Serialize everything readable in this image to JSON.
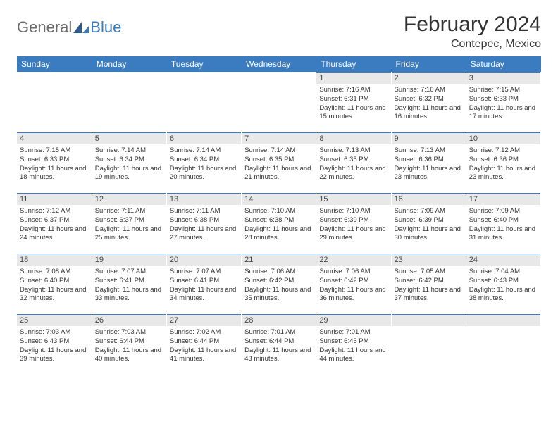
{
  "logo": {
    "part1": "General",
    "part2": "Blue"
  },
  "title": "February 2024",
  "location": "Contepec, Mexico",
  "colors": {
    "header_bg": "#3b7bbf",
    "header_text": "#ffffff",
    "daynum_bg": "#e8e8e8",
    "border": "#3b7bbf",
    "logo_gray": "#6b6b6b",
    "logo_blue": "#3b7bbf",
    "body_text": "#333333",
    "page_bg": "#ffffff"
  },
  "weekdays": [
    "Sunday",
    "Monday",
    "Tuesday",
    "Wednesday",
    "Thursday",
    "Friday",
    "Saturday"
  ],
  "month": {
    "year": 2024,
    "month": 2,
    "first_weekday_index": 4,
    "days_in_month": 29
  },
  "days": {
    "1": {
      "sunrise": "7:16 AM",
      "sunset": "6:31 PM",
      "daylight": "11 hours and 15 minutes."
    },
    "2": {
      "sunrise": "7:16 AM",
      "sunset": "6:32 PM",
      "daylight": "11 hours and 16 minutes."
    },
    "3": {
      "sunrise": "7:15 AM",
      "sunset": "6:33 PM",
      "daylight": "11 hours and 17 minutes."
    },
    "4": {
      "sunrise": "7:15 AM",
      "sunset": "6:33 PM",
      "daylight": "11 hours and 18 minutes."
    },
    "5": {
      "sunrise": "7:14 AM",
      "sunset": "6:34 PM",
      "daylight": "11 hours and 19 minutes."
    },
    "6": {
      "sunrise": "7:14 AM",
      "sunset": "6:34 PM",
      "daylight": "11 hours and 20 minutes."
    },
    "7": {
      "sunrise": "7:14 AM",
      "sunset": "6:35 PM",
      "daylight": "11 hours and 21 minutes."
    },
    "8": {
      "sunrise": "7:13 AM",
      "sunset": "6:35 PM",
      "daylight": "11 hours and 22 minutes."
    },
    "9": {
      "sunrise": "7:13 AM",
      "sunset": "6:36 PM",
      "daylight": "11 hours and 23 minutes."
    },
    "10": {
      "sunrise": "7:12 AM",
      "sunset": "6:36 PM",
      "daylight": "11 hours and 23 minutes."
    },
    "11": {
      "sunrise": "7:12 AM",
      "sunset": "6:37 PM",
      "daylight": "11 hours and 24 minutes."
    },
    "12": {
      "sunrise": "7:11 AM",
      "sunset": "6:37 PM",
      "daylight": "11 hours and 25 minutes."
    },
    "13": {
      "sunrise": "7:11 AM",
      "sunset": "6:38 PM",
      "daylight": "11 hours and 27 minutes."
    },
    "14": {
      "sunrise": "7:10 AM",
      "sunset": "6:38 PM",
      "daylight": "11 hours and 28 minutes."
    },
    "15": {
      "sunrise": "7:10 AM",
      "sunset": "6:39 PM",
      "daylight": "11 hours and 29 minutes."
    },
    "16": {
      "sunrise": "7:09 AM",
      "sunset": "6:39 PM",
      "daylight": "11 hours and 30 minutes."
    },
    "17": {
      "sunrise": "7:09 AM",
      "sunset": "6:40 PM",
      "daylight": "11 hours and 31 minutes."
    },
    "18": {
      "sunrise": "7:08 AM",
      "sunset": "6:40 PM",
      "daylight": "11 hours and 32 minutes."
    },
    "19": {
      "sunrise": "7:07 AM",
      "sunset": "6:41 PM",
      "daylight": "11 hours and 33 minutes."
    },
    "20": {
      "sunrise": "7:07 AM",
      "sunset": "6:41 PM",
      "daylight": "11 hours and 34 minutes."
    },
    "21": {
      "sunrise": "7:06 AM",
      "sunset": "6:42 PM",
      "daylight": "11 hours and 35 minutes."
    },
    "22": {
      "sunrise": "7:06 AM",
      "sunset": "6:42 PM",
      "daylight": "11 hours and 36 minutes."
    },
    "23": {
      "sunrise": "7:05 AM",
      "sunset": "6:42 PM",
      "daylight": "11 hours and 37 minutes."
    },
    "24": {
      "sunrise": "7:04 AM",
      "sunset": "6:43 PM",
      "daylight": "11 hours and 38 minutes."
    },
    "25": {
      "sunrise": "7:03 AM",
      "sunset": "6:43 PM",
      "daylight": "11 hours and 39 minutes."
    },
    "26": {
      "sunrise": "7:03 AM",
      "sunset": "6:44 PM",
      "daylight": "11 hours and 40 minutes."
    },
    "27": {
      "sunrise": "7:02 AM",
      "sunset": "6:44 PM",
      "daylight": "11 hours and 41 minutes."
    },
    "28": {
      "sunrise": "7:01 AM",
      "sunset": "6:44 PM",
      "daylight": "11 hours and 43 minutes."
    },
    "29": {
      "sunrise": "7:01 AM",
      "sunset": "6:45 PM",
      "daylight": "11 hours and 44 minutes."
    }
  },
  "labels": {
    "sunrise": "Sunrise:",
    "sunset": "Sunset:",
    "daylight": "Daylight:"
  }
}
